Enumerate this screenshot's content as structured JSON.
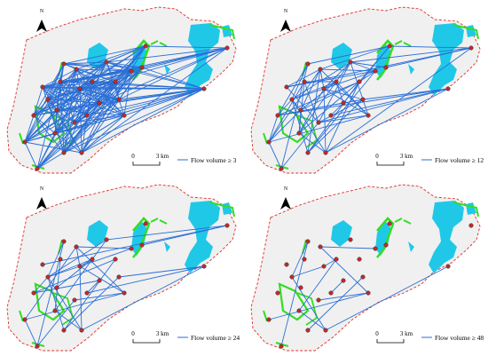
{
  "panels": [
    {
      "north": "N",
      "scale_start": "0",
      "scale_end": "3 km",
      "legend": "Flow volume ≥ 3"
    },
    {
      "north": "N",
      "scale_start": "0",
      "scale_end": "3 km",
      "legend": "Flow volume ≥ 12"
    },
    {
      "north": "N",
      "scale_start": "0",
      "scale_end": "3 km",
      "legend": "Flow volume ≥ 24"
    },
    {
      "north": "N",
      "scale_start": "0",
      "scale_end": "3 km",
      "legend": "Flow volume ≥ 48"
    }
  ]
}
